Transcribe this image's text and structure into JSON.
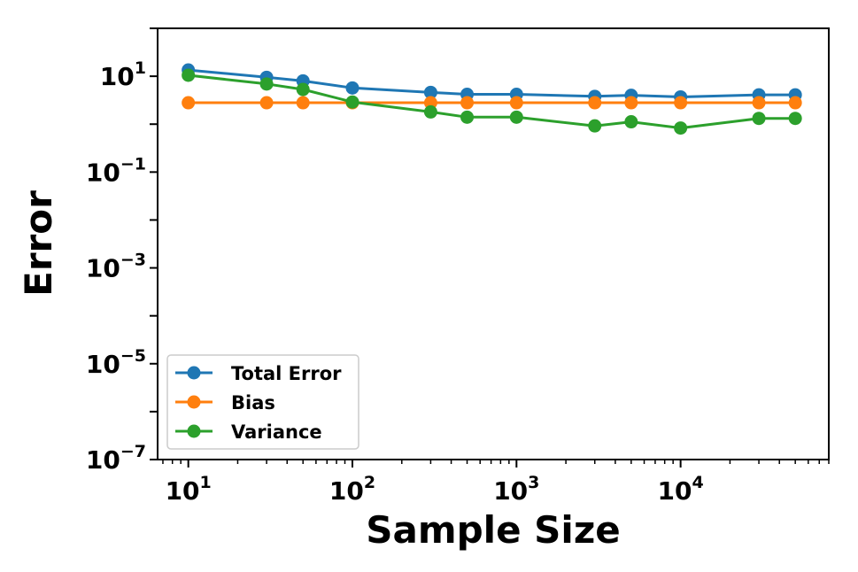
{
  "chart_data": {
    "type": "line",
    "xlabel": "Sample Size",
    "ylabel": "Error",
    "xscale": "log",
    "yscale": "log",
    "xlim": [
      6.5,
      80000
    ],
    "ylim": [
      1e-07,
      100
    ],
    "x_ticks": [
      {
        "value": 10,
        "base": "10",
        "exp": "1"
      },
      {
        "value": 100,
        "base": "10",
        "exp": "2"
      },
      {
        "value": 1000,
        "base": "10",
        "exp": "3"
      },
      {
        "value": 10000,
        "base": "10",
        "exp": "4"
      }
    ],
    "y_ticks": [
      {
        "value": 10,
        "base": "10",
        "exp": "1"
      },
      {
        "value": 0.1,
        "base": "10",
        "exp": "−1"
      },
      {
        "value": 0.001,
        "base": "10",
        "exp": "−3"
      },
      {
        "value": 1e-05,
        "base": "10",
        "exp": "−5"
      },
      {
        "value": 1e-07,
        "base": "10",
        "exp": "−7"
      }
    ],
    "x": [
      10,
      30,
      50,
      100,
      300,
      500,
      1000,
      3000,
      5000,
      10000,
      30000,
      50000
    ],
    "series": [
      {
        "name": "Total Error",
        "color": "#1f77b4",
        "values": [
          13.5,
          9.5,
          8.0,
          5.7,
          4.6,
          4.2,
          4.2,
          3.8,
          4.0,
          3.7,
          4.1,
          4.1
        ]
      },
      {
        "name": "Bias",
        "color": "#ff7f0e",
        "values": [
          2.8,
          2.8,
          2.8,
          2.8,
          2.8,
          2.8,
          2.8,
          2.8,
          2.8,
          2.8,
          2.8,
          2.8
        ]
      },
      {
        "name": "Variance",
        "color": "#2ca02c",
        "values": [
          10.5,
          6.9,
          5.3,
          2.9,
          1.8,
          1.4,
          1.4,
          0.92,
          1.12,
          0.83,
          1.32,
          1.32
        ]
      }
    ],
    "grid": false,
    "legend_position": "lower-left"
  }
}
